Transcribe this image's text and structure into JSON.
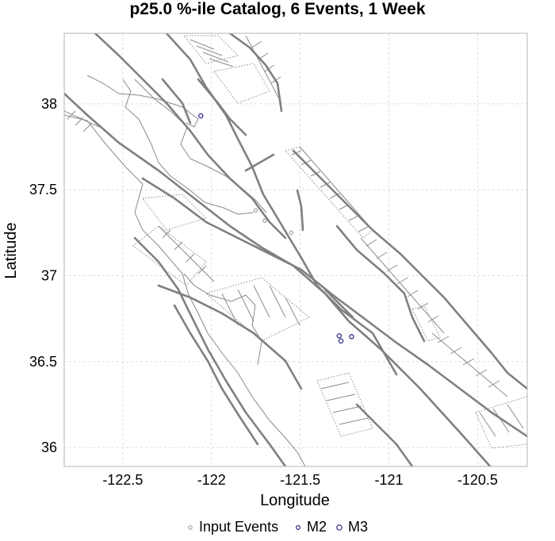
{
  "chart_data": {
    "type": "scatter",
    "title": "p25.0 %-ile Catalog, 6 Events, 1 Week",
    "xlabel": "Longitude",
    "ylabel": "Latitude",
    "xlim": [
      -122.83,
      -120.22
    ],
    "ylim": [
      35.89,
      38.41
    ],
    "xticks": [
      -122.5,
      -122,
      -121.5,
      -121,
      -120.5
    ],
    "yticks": [
      36,
      36.5,
      37,
      37.5,
      38
    ],
    "xtick_labels": [
      "-122.5",
      "-122",
      "-121.5",
      "-121",
      "-120.5"
    ],
    "ytick_labels": [
      "36",
      "36.5",
      "37",
      "37.5",
      "38"
    ],
    "grid": true,
    "legend_position": "bottom",
    "series": [
      {
        "name": "Input Events",
        "color": "#909090",
        "marker": "open-circle-small",
        "points": [
          {
            "x": -121.75,
            "y": 37.38
          },
          {
            "x": -121.55,
            "y": 37.25
          },
          {
            "x": -121.7,
            "y": 37.32
          }
        ]
      },
      {
        "name": "M2",
        "color": "#2b2b8a",
        "marker": "open-circle",
        "points": [
          {
            "x": -122.06,
            "y": 37.93
          },
          {
            "x": -121.28,
            "y": 36.65
          },
          {
            "x": -121.21,
            "y": 36.645
          },
          {
            "x": -121.27,
            "y": 36.62
          }
        ]
      },
      {
        "name": "M3",
        "color": "#2b2b8a",
        "marker": "open-circle-large",
        "points": []
      }
    ]
  }
}
